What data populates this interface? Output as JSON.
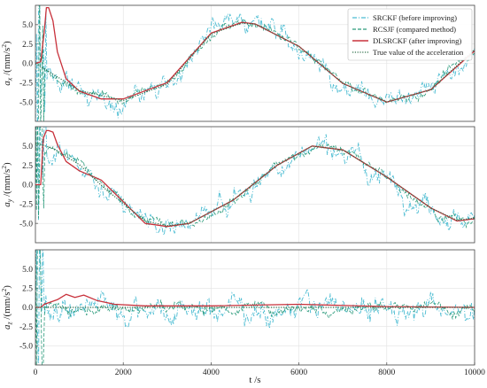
{
  "chart_data": {
    "type": "line",
    "xlabel": "t /s",
    "xlim": [
      0,
      10000
    ],
    "xticks": [
      "0",
      "2000",
      "4000",
      "6000",
      "8000",
      "10000"
    ],
    "grid": true,
    "legend_position": "top-right",
    "series_styles": [
      {
        "name": "SRCKF (before improving)",
        "color": "#4bbcd2",
        "dash": "dashdot"
      },
      {
        "name": "RCSJF (compared method)",
        "color": "#2a9a7a",
        "dash": "dashed"
      },
      {
        "name": "DLSRCKF (after improving)",
        "color": "#c8323c",
        "dash": "solid"
      },
      {
        "name": "True value of the acceleration",
        "color": "#2f6e4a",
        "dash": "dotted"
      }
    ],
    "panels": [
      {
        "ylabel_sub": "x",
        "ylim": [
          -7.5,
          7.5
        ],
        "yticks": [
          "5.0",
          "2.5",
          "0.0",
          "-2.5",
          "-5.0"
        ],
        "truth": {
          "x": [
            0,
            1000,
            2000,
            3000,
            4000,
            4700,
            5000,
            6000,
            7000,
            8000,
            9000,
            10000
          ],
          "y": [
            0.0,
            -3.5,
            -4.8,
            -2.7,
            3.8,
            5.2,
            5.1,
            2.2,
            -2.6,
            -5.0,
            -3.4,
            1.8
          ]
        },
        "dlsrckf": {
          "x": [
            0,
            120,
            200,
            250,
            300,
            400,
            500,
            700,
            1000,
            1500,
            2000,
            3000,
            4000,
            4700,
            5000,
            6000,
            7000,
            8000,
            9000,
            10000
          ],
          "y": [
            0.0,
            0.2,
            4.0,
            7.2,
            7.2,
            5.5,
            1.5,
            -2.0,
            -3.6,
            -4.6,
            -4.6,
            -2.5,
            3.9,
            5.3,
            5.1,
            2.2,
            -2.6,
            -5.0,
            -3.4,
            1.6
          ]
        }
      },
      {
        "ylabel_sub": "y",
        "ylim": [
          -7.5,
          7.5
        ],
        "yticks": [
          "5.0",
          "2.5",
          "0.0",
          "-2.5",
          "-5.0"
        ],
        "truth": {
          "x": [
            0,
            400,
            1000,
            1600,
            2500,
            3000,
            3500,
            4500,
            5500,
            6300,
            7000,
            8000,
            9000,
            9600,
            10000
          ],
          "y": [
            5.4,
            4.7,
            2.6,
            -0.6,
            -4.7,
            -5.3,
            -5.0,
            -2.0,
            2.5,
            5.0,
            4.5,
            1.0,
            -3.0,
            -4.6,
            -4.3
          ]
        },
        "dlsrckf": {
          "x": [
            0,
            120,
            180,
            250,
            300,
            400,
            500,
            700,
            1000,
            1500,
            2000,
            2500,
            3000,
            3500,
            4500,
            5500,
            6300,
            7000,
            8000,
            9000,
            9600,
            10000
          ],
          "y": [
            0.0,
            0.0,
            6.0,
            7.0,
            7.0,
            6.8,
            5.2,
            3.0,
            1.8,
            0.6,
            -2.2,
            -5.0,
            -5.4,
            -5.0,
            -2.0,
            2.5,
            5.0,
            4.5,
            1.0,
            -3.0,
            -4.7,
            -4.4
          ]
        }
      },
      {
        "ylabel_sub": "z",
        "ylim": [
          -7.5,
          7.5
        ],
        "yticks": [
          "5.0",
          "2.5",
          "0.0",
          "-2.5",
          "-5.0"
        ],
        "truth": {
          "x": [
            0,
            1000,
            2000,
            4000,
            6000,
            8000,
            10000
          ],
          "y": [
            0.0,
            0.0,
            0.0,
            0.0,
            0.0,
            0.0,
            0.0
          ]
        },
        "dlsrckf": {
          "x": [
            0,
            120,
            200,
            300,
            500,
            700,
            900,
            1100,
            1400,
            1800,
            2500,
            4000,
            6000,
            8000,
            10000
          ],
          "y": [
            0.0,
            0.0,
            0.4,
            0.6,
            1.0,
            1.7,
            1.3,
            1.6,
            0.9,
            0.4,
            0.2,
            0.2,
            0.4,
            0.1,
            0.0
          ]
        }
      }
    ]
  }
}
